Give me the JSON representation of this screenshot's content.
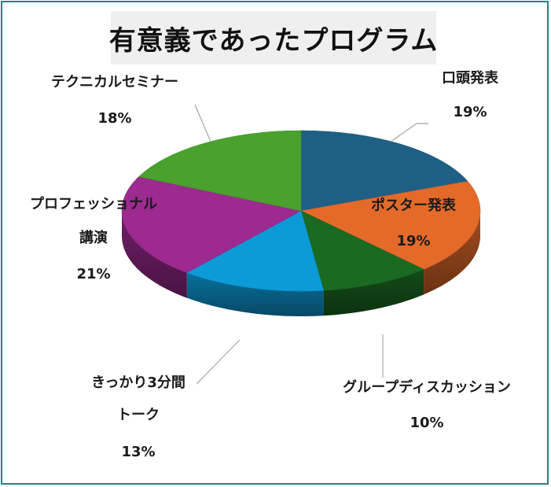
{
  "chart_data": {
    "type": "pie",
    "title": "有意義であったプログラム",
    "slices": [
      {
        "name": "口頭発表",
        "value": 19,
        "label": "19%",
        "color": "#1f5f86",
        "label_lines": [
          "口頭発表"
        ]
      },
      {
        "name": "ポスター発表",
        "value": 19,
        "label": "19%",
        "color": "#e46a2a",
        "label_lines": [
          "ポスター発表"
        ]
      },
      {
        "name": "グループディスカッション",
        "value": 10,
        "label": "10%",
        "color": "#1b6a22",
        "label_lines": [
          "グループディスカッション"
        ]
      },
      {
        "name": "きっかり3分間トーク",
        "value": 13,
        "label": "13%",
        "color": "#0d9bd8",
        "label_lines": [
          "きっかり3分間",
          "トーク"
        ]
      },
      {
        "name": "プロフェッショナル講演",
        "value": 21,
        "label": "21%",
        "color": "#9c2a8f",
        "label_lines": [
          "プロフェッショナル",
          "講演"
        ]
      },
      {
        "name": "テクニカルセミナー",
        "value": 18,
        "label": "18%",
        "color": "#4aa12e",
        "label_lines": [
          "テクニカルセミナー"
        ]
      }
    ],
    "legend": "none"
  }
}
